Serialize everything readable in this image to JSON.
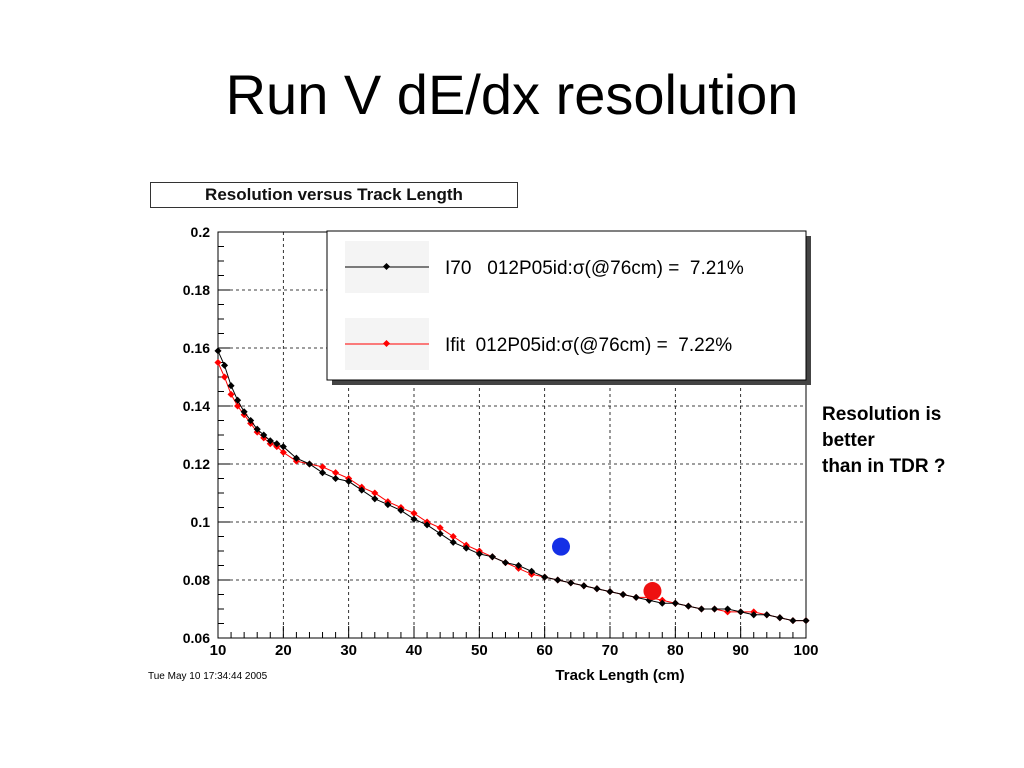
{
  "slide": {
    "title": "Run V dE/dx resolution",
    "timestamp": "Tue May 10 17:34:44 2005",
    "note_lines": [
      "Resolution is",
      "better",
      "than in TDR ?"
    ]
  },
  "chart_data": {
    "type": "scatter",
    "title": "Resolution versus Track Length",
    "xlabel": "Track Length (cm)",
    "ylabel": "",
    "xlim": [
      10,
      100
    ],
    "ylim": [
      0.06,
      0.2
    ],
    "xticks": [
      10,
      20,
      30,
      40,
      50,
      60,
      70,
      80,
      90,
      100
    ],
    "yticks": [
      0.06,
      0.08,
      0.1,
      0.12,
      0.14,
      0.16,
      0.18,
      0.2
    ],
    "ytick_labels": [
      "0.06",
      "0.08",
      "0.1",
      "0.12",
      "0.14",
      "0.16",
      "0.18",
      "0.2"
    ],
    "grid": true,
    "legend_position": "top-right",
    "series": [
      {
        "name": "I70   012P05id:σ(@76cm) =  7.21%",
        "color": "#000000",
        "x": [
          10,
          11,
          12,
          13,
          14,
          15,
          16,
          17,
          18,
          19,
          20,
          22,
          24,
          26,
          28,
          30,
          32,
          34,
          36,
          38,
          40,
          42,
          44,
          46,
          48,
          50,
          52,
          54,
          56,
          58,
          60,
          62,
          64,
          66,
          68,
          70,
          72,
          74,
          76,
          78,
          80,
          82,
          84,
          86,
          88,
          90,
          92,
          94,
          96,
          98,
          100
        ],
        "y": [
          0.159,
          0.154,
          0.147,
          0.142,
          0.138,
          0.135,
          0.132,
          0.13,
          0.128,
          0.127,
          0.126,
          0.122,
          0.12,
          0.117,
          0.115,
          0.114,
          0.111,
          0.108,
          0.106,
          0.104,
          0.101,
          0.099,
          0.096,
          0.093,
          0.091,
          0.089,
          0.088,
          0.086,
          0.085,
          0.083,
          0.081,
          0.08,
          0.079,
          0.078,
          0.077,
          0.076,
          0.075,
          0.074,
          0.073,
          0.072,
          0.072,
          0.071,
          0.07,
          0.07,
          0.07,
          0.069,
          0.068,
          0.068,
          0.067,
          0.066,
          0.066
        ]
      },
      {
        "name": "Ifit  012P05id:σ(@76cm) =  7.22%",
        "color": "#ff0000",
        "x": [
          10,
          11,
          12,
          13,
          14,
          15,
          16,
          17,
          18,
          19,
          20,
          22,
          24,
          26,
          28,
          30,
          32,
          34,
          36,
          38,
          40,
          42,
          44,
          46,
          48,
          50,
          52,
          54,
          56,
          58,
          60,
          62,
          64,
          66,
          68,
          70,
          72,
          74,
          76,
          78,
          80,
          82,
          84,
          86,
          88,
          90,
          92,
          94,
          96,
          98,
          100
        ],
        "y": [
          0.155,
          0.15,
          0.144,
          0.14,
          0.137,
          0.134,
          0.131,
          0.129,
          0.127,
          0.126,
          0.124,
          0.121,
          0.12,
          0.119,
          0.117,
          0.115,
          0.112,
          0.11,
          0.107,
          0.105,
          0.103,
          0.1,
          0.098,
          0.095,
          0.092,
          0.09,
          0.088,
          0.086,
          0.084,
          0.082,
          0.081,
          0.08,
          0.079,
          0.078,
          0.077,
          0.076,
          0.075,
          0.074,
          0.074,
          0.073,
          0.072,
          0.071,
          0.07,
          0.07,
          0.069,
          0.069,
          0.069,
          0.068,
          0.067,
          0.066,
          0.066
        ]
      }
    ],
    "annotations": [
      {
        "name": "blue-marker",
        "x": 62.5,
        "y": 0.0915,
        "color": "#1530e6"
      },
      {
        "name": "red-marker",
        "x": 76.5,
        "y": 0.0762,
        "color": "#ee1111"
      }
    ]
  }
}
